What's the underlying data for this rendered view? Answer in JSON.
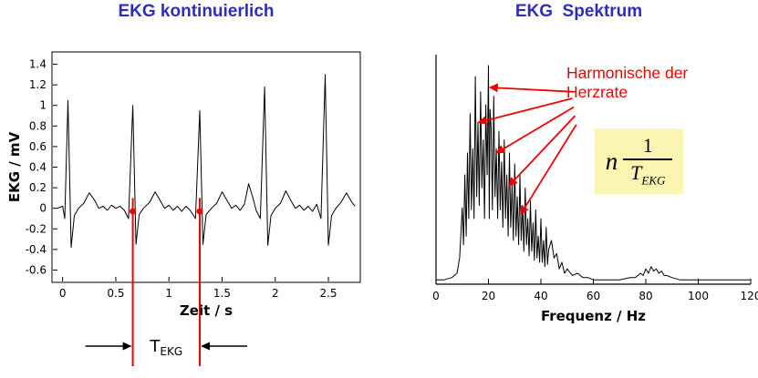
{
  "colors": {
    "title_blue": "#2e2eb8",
    "annotation_red": "#ee0000",
    "trace": "#000000",
    "formula_bg": "#faf5b0"
  },
  "annotations": {
    "harmonic_line1": "Harmonische der",
    "harmonic_line2": "Herzrate",
    "formula_factor": "n",
    "formula_numerator": "1",
    "formula_den_base": "T",
    "formula_den_sub": "EKG"
  },
  "chart_data": [
    {
      "type": "line",
      "title": "EKG kontinuierlich",
      "xlabel": "Zeit / s",
      "ylabel": "EKG / mV",
      "xlim": [
        -0.1,
        2.8
      ],
      "ylim": [
        -0.72,
        1.52
      ],
      "xticks": [
        0,
        0.5,
        1,
        1.5,
        2,
        2.5
      ],
      "yticks": [
        1.4,
        1.2,
        1,
        0.8,
        0.6,
        0.4,
        0.2,
        0,
        -0.2,
        -0.4,
        -0.6
      ],
      "grid": false,
      "series": [
        {
          "name": "EKG",
          "x": [
            -0.05,
            0,
            0.02,
            0.05,
            0.08,
            0.11,
            0.15,
            0.2,
            0.25,
            0.3,
            0.34,
            0.38,
            0.42,
            0.46,
            0.5,
            0.54,
            0.58,
            0.62,
            0.66,
            0.69,
            0.72,
            0.76,
            0.82,
            0.87,
            0.92,
            0.96,
            1,
            1.04,
            1.08,
            1.12,
            1.16,
            1.2,
            1.25,
            1.29,
            1.32,
            1.35,
            1.4,
            1.45,
            1.5,
            1.55,
            1.59,
            1.63,
            1.67,
            1.71,
            1.75,
            1.79,
            1.82,
            1.86,
            1.9,
            1.93,
            1.96,
            2,
            2.05,
            2.1,
            2.15,
            2.19,
            2.23,
            2.27,
            2.31,
            2.35,
            2.39,
            2.43,
            2.47,
            2.5,
            2.53,
            2.57,
            2.62,
            2.67,
            2.72,
            2.75
          ],
          "y": [
            0,
            0.02,
            -0.1,
            1.05,
            -0.38,
            -0.07,
            0,
            0.05,
            0.15,
            0.08,
            0,
            0.02,
            -0.02,
            0.03,
            0,
            0.02,
            -0.02,
            -0.1,
            1.0,
            -0.35,
            -0.06,
            0,
            0.06,
            0.16,
            0.07,
            0,
            0.03,
            -0.02,
            0.02,
            -0.03,
            0.02,
            -0.02,
            -0.1,
            0.95,
            -0.35,
            -0.06,
            0,
            0.05,
            0.16,
            0.07,
            0,
            0.03,
            -0.02,
            0.04,
            0.24,
            0.1,
            -0.02,
            -0.1,
            1.18,
            -0.36,
            -0.07,
            0,
            0.05,
            0.17,
            0.07,
            0,
            0.03,
            -0.02,
            0.02,
            -0.03,
            0.04,
            -0.1,
            1.3,
            -0.36,
            -0.07,
            0,
            0.06,
            0.15,
            0.06,
            0.02
          ]
        }
      ],
      "annotations": {
        "marker_times": [
          0.66,
          1.29
        ],
        "interval_label_base": "T",
        "interval_label_sub": "EKG",
        "marker_color": "#ee0000"
      }
    },
    {
      "type": "line",
      "title": "EKG  Spektrum",
      "xlabel": "Frequenz / Hz",
      "ylabel": "",
      "xlim": [
        0,
        120
      ],
      "ylim": [
        0,
        1.05
      ],
      "xticks": [
        0,
        20,
        40,
        60,
        80,
        100,
        120
      ],
      "yticks": [],
      "grid": false,
      "series": [
        {
          "name": "Spektrum",
          "x": [
            0,
            3,
            6,
            8,
            9,
            10,
            10.5,
            11,
            11.5,
            12,
            12.5,
            13,
            13.5,
            14,
            14.5,
            15,
            15.5,
            16,
            16.5,
            17,
            17.5,
            18,
            18.5,
            19,
            19.5,
            20,
            20.3,
            20.6,
            21,
            21.5,
            22,
            22.5,
            23,
            23.5,
            24,
            24.5,
            25,
            25.5,
            26,
            26.5,
            27,
            27.5,
            28,
            28.5,
            29,
            29.5,
            30,
            30.5,
            31,
            31.5,
            32,
            32.5,
            33,
            33.5,
            34,
            34.5,
            35,
            35.5,
            36,
            36.5,
            37,
            37.5,
            38,
            38.5,
            39,
            39.5,
            40,
            40.5,
            41,
            41.5,
            42,
            42.5,
            43,
            44,
            45,
            46,
            47,
            48,
            49,
            50,
            52,
            54,
            56,
            58,
            60,
            63,
            66,
            70,
            74,
            76,
            78,
            79,
            80,
            81,
            82,
            83,
            84,
            85,
            86,
            87,
            88,
            90,
            93,
            96,
            100,
            105,
            110,
            115,
            120
          ],
          "y": [
            0.02,
            0.02,
            0.03,
            0.05,
            0.12,
            0.35,
            0.18,
            0.5,
            0.22,
            0.6,
            0.3,
            0.78,
            0.34,
            0.62,
            0.3,
            0.95,
            0.4,
            0.74,
            0.36,
            0.88,
            0.44,
            0.66,
            0.3,
            0.82,
            0.5,
            1.0,
            0.3,
            0.8,
            0.72,
            0.34,
            0.86,
            0.4,
            0.62,
            0.3,
            0.7,
            0.34,
            0.56,
            0.26,
            0.66,
            0.3,
            0.5,
            0.22,
            0.6,
            0.26,
            0.46,
            0.2,
            0.55,
            0.22,
            0.4,
            0.18,
            0.5,
            0.2,
            0.36,
            0.15,
            0.44,
            0.18,
            0.3,
            0.13,
            0.38,
            0.15,
            0.28,
            0.11,
            0.34,
            0.12,
            0.22,
            0.1,
            0.3,
            0.1,
            0.2,
            0.08,
            0.26,
            0.09,
            0.16,
            0.2,
            0.12,
            0.14,
            0.07,
            0.1,
            0.05,
            0.07,
            0.04,
            0.05,
            0.03,
            0.03,
            0.02,
            0.02,
            0.02,
            0.02,
            0.03,
            0.03,
            0.05,
            0.04,
            0.07,
            0.05,
            0.08,
            0.06,
            0.07,
            0.05,
            0.06,
            0.04,
            0.04,
            0.03,
            0.02,
            0.02,
            0.02,
            0.02,
            0.02,
            0.02,
            0.02
          ]
        }
      ],
      "annotations": {
        "label": "Harmonische der Herzrate",
        "formula": "n · 1/T_EKG",
        "arrow_color": "#ee0000",
        "arrows": [
          {
            "tail": [
              52.5,
              0.88
            ],
            "head": [
              20.5,
              0.9
            ]
          },
          {
            "tail": [
              52.0,
              0.85
            ],
            "head": [
              16.2,
              0.74
            ]
          },
          {
            "tail": [
              52.5,
              0.81
            ],
            "head": [
              23.0,
              0.6
            ]
          },
          {
            "tail": [
              53.0,
              0.77
            ],
            "head": [
              27.8,
              0.45
            ]
          },
          {
            "tail": [
              53.5,
              0.73
            ],
            "head": [
              32.3,
              0.32
            ]
          }
        ]
      }
    }
  ]
}
